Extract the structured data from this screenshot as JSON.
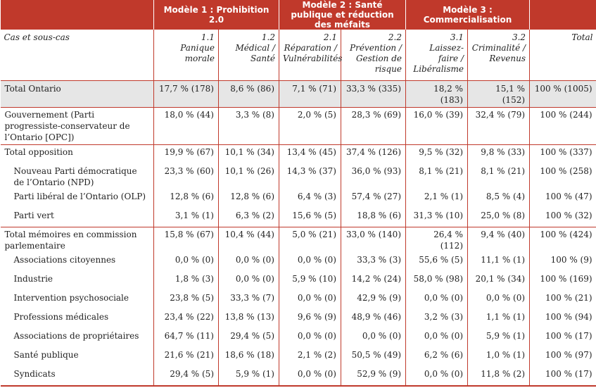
{
  "models": [
    {
      "label": "Modèle 1 : Prohibition 2.0"
    },
    {
      "label": "Modèle 2 : Santé publique et réduction des méfaits"
    },
    {
      "label": "Modèle 3 : Commercialisation"
    }
  ],
  "subheader": {
    "label": "Cas et sous-cas",
    "cols": [
      {
        "num": "1.1",
        "name": "Panique morale"
      },
      {
        "num": "1.2",
        "name": "Médical / Santé"
      },
      {
        "num": "2.1",
        "name": "Réparation / Vulnérabilités"
      },
      {
        "num": "2.2",
        "name": "Prévention / Gestion de risque"
      },
      {
        "num": "3.1",
        "name": "Laissez-faire / Libéralisme"
      },
      {
        "num": "3.2",
        "name": "Criminalité / Revenus"
      },
      {
        "num": "",
        "name": "Total"
      }
    ]
  },
  "rows": [
    {
      "label": "Total Ontario",
      "cells": [
        "17,7 % (178)",
        "8,6 % (86)",
        "7,1 % (71)",
        "33,3 % (335)",
        "18,2 % (183)",
        "15,1 % (152)",
        "100 % (1005)"
      ]
    },
    {
      "label": "Gouvernement (Parti progressiste-conservateur de l’Ontario [OPC])",
      "cells": [
        "18,0 % (44)",
        "3,3 % (8)",
        "2,0 % (5)",
        "28,3 % (69)",
        "16,0 % (39)",
        "32,4 % (79)",
        "100 % (244)"
      ]
    },
    {
      "label": "Total opposition",
      "cells": [
        "19,9 % (67)",
        "10,1 % (34)",
        "13,4 % (45)",
        "37,4 % (126)",
        "9,5 % (32)",
        "9,8 % (33)",
        "100 % (337)"
      ]
    },
    {
      "label": "Nouveau Parti démocratique de l’Ontario (NPD)",
      "cells": [
        "23,3 % (60)",
        "10,1 % (26)",
        "14,3 % (37)",
        "36,0 % (93)",
        "8,1 % (21)",
        "8,1 % (21)",
        "100 % (258)"
      ]
    },
    {
      "label": "Parti libéral de l’Ontario (OLP)",
      "cells": [
        "12,8 % (6)",
        "12,8 % (6)",
        "6,4 % (3)",
        "57,4 % (27)",
        "2,1 % (1)",
        "8,5 % (4)",
        "100 % (47)"
      ]
    },
    {
      "label": "Parti vert",
      "cells": [
        "3,1 % (1)",
        "6,3 % (2)",
        "15,6 % (5)",
        "18,8 % (6)",
        "31,3 % (10)",
        "25,0 % (8)",
        "100 % (32)"
      ]
    },
    {
      "label": "Total mémoires en commission parlementaire",
      "cells": [
        "15,8 % (67)",
        "10,4 % (44)",
        "5,0 % (21)",
        "33,0 % (140)",
        "26,4 % (112)",
        "9,4 % (40)",
        "100 % (424)"
      ]
    },
    {
      "label": "Associations citoyennes",
      "cells": [
        "0,0 % (0)",
        "0,0 % (0)",
        "0,0 % (0)",
        "33,3 % (3)",
        "55,6 % (5)",
        "11,1 % (1)",
        "100 % (9)"
      ]
    },
    {
      "label": "Industrie",
      "cells": [
        "1,8 % (3)",
        "0,0 % (0)",
        "5,9 % (10)",
        "14,2 % (24)",
        "58,0 % (98)",
        "20,1 % (34)",
        "100 % (169)"
      ]
    },
    {
      "label": "Intervention psychosociale",
      "cells": [
        "23,8 % (5)",
        "33,3 % (7)",
        "0,0 % (0)",
        "42,9 % (9)",
        "0,0 % (0)",
        "0,0 % (0)",
        "100 % (21)"
      ]
    },
    {
      "label": "Professions médicales",
      "cells": [
        "23,4 % (22)",
        "13,8 % (13)",
        "9,6 % (9)",
        "48,9 % (46)",
        "3,2 % (3)",
        "1,1 % (1)",
        "100 % (94)"
      ]
    },
    {
      "label": "Associations de propriétaires",
      "cells": [
        "64,7 % (11)",
        "29,4 % (5)",
        "0,0 % (0)",
        "0,0 % (0)",
        "0,0 % (0)",
        "5,9 % (1)",
        "100 % (17)"
      ]
    },
    {
      "label": "Santé publique",
      "cells": [
        "21,6 % (21)",
        "18,6 % (18)",
        "2,1 % (2)",
        "50,5 % (49)",
        "6,2 % (6)",
        "1,0 % (1)",
        "100 % (97)"
      ]
    },
    {
      "label": "Syndicats",
      "cells": [
        "29,4 % (5)",
        "5,9 % (1)",
        "0,0 % (0)",
        "52,9 % (9)",
        "0,0 % (0)",
        "11,8 % (2)",
        "100 % (17)"
      ]
    }
  ]
}
